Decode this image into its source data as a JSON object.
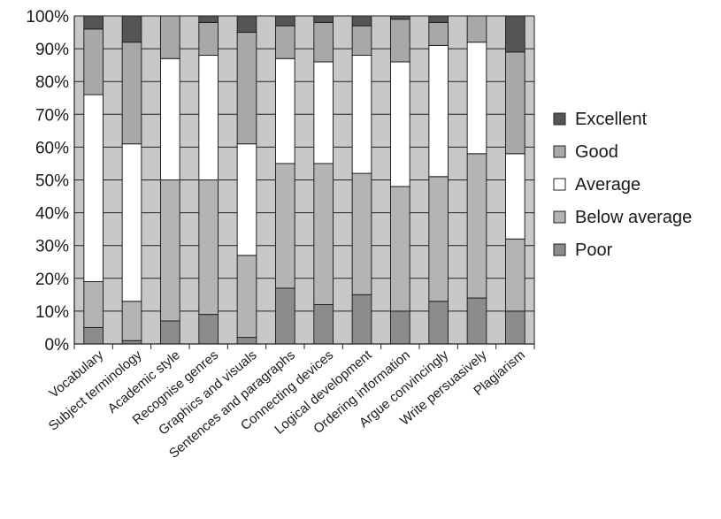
{
  "chart_data": {
    "type": "bar",
    "stacked": true,
    "normalized_percent": true,
    "title": "",
    "xlabel": "",
    "ylabel": "",
    "ylim": [
      0,
      100
    ],
    "yticks": [
      "0%",
      "10%",
      "20%",
      "30%",
      "40%",
      "50%",
      "60%",
      "70%",
      "80%",
      "90%",
      "100%"
    ],
    "grid": true,
    "legend_position": "right",
    "categories": [
      "Vocabulary",
      "Subject terminology",
      "Academic style",
      "Recognise genres",
      "Graphics and visuals",
      "Sentences and paragraphs",
      "Connecting devices",
      "Logical development",
      "Ordering information",
      "Argue convincingly",
      "Write persuasively",
      "Plagiarism"
    ],
    "series": [
      {
        "name": "Poor",
        "color": "#8c8c8c",
        "values": [
          5,
          1,
          7,
          9,
          2,
          17,
          12,
          15,
          10,
          13,
          14,
          10
        ]
      },
      {
        "name": "Below average",
        "color": "#b4b4b4",
        "values": [
          14,
          12,
          43,
          41,
          25,
          38,
          43,
          37,
          38,
          38,
          44,
          22
        ]
      },
      {
        "name": "Average",
        "color": "#ffffff",
        "values": [
          57,
          48,
          37,
          38,
          34,
          32,
          31,
          36,
          38,
          40,
          34,
          26
        ]
      },
      {
        "name": "Good",
        "color": "#a8a8a8",
        "values": [
          20,
          31,
          13,
          10,
          34,
          10,
          12,
          9,
          13,
          7,
          8,
          31
        ]
      },
      {
        "name": "Excellent",
        "color": "#555555",
        "values": [
          4,
          8,
          0,
          2,
          5,
          3,
          2,
          3,
          1,
          2,
          0,
          11
        ]
      }
    ],
    "legend_order": [
      "Excellent",
      "Good",
      "Average",
      "Below average",
      "Poor"
    ],
    "plot_background": "#c8c8c8",
    "gridline_color": "#222222"
  }
}
